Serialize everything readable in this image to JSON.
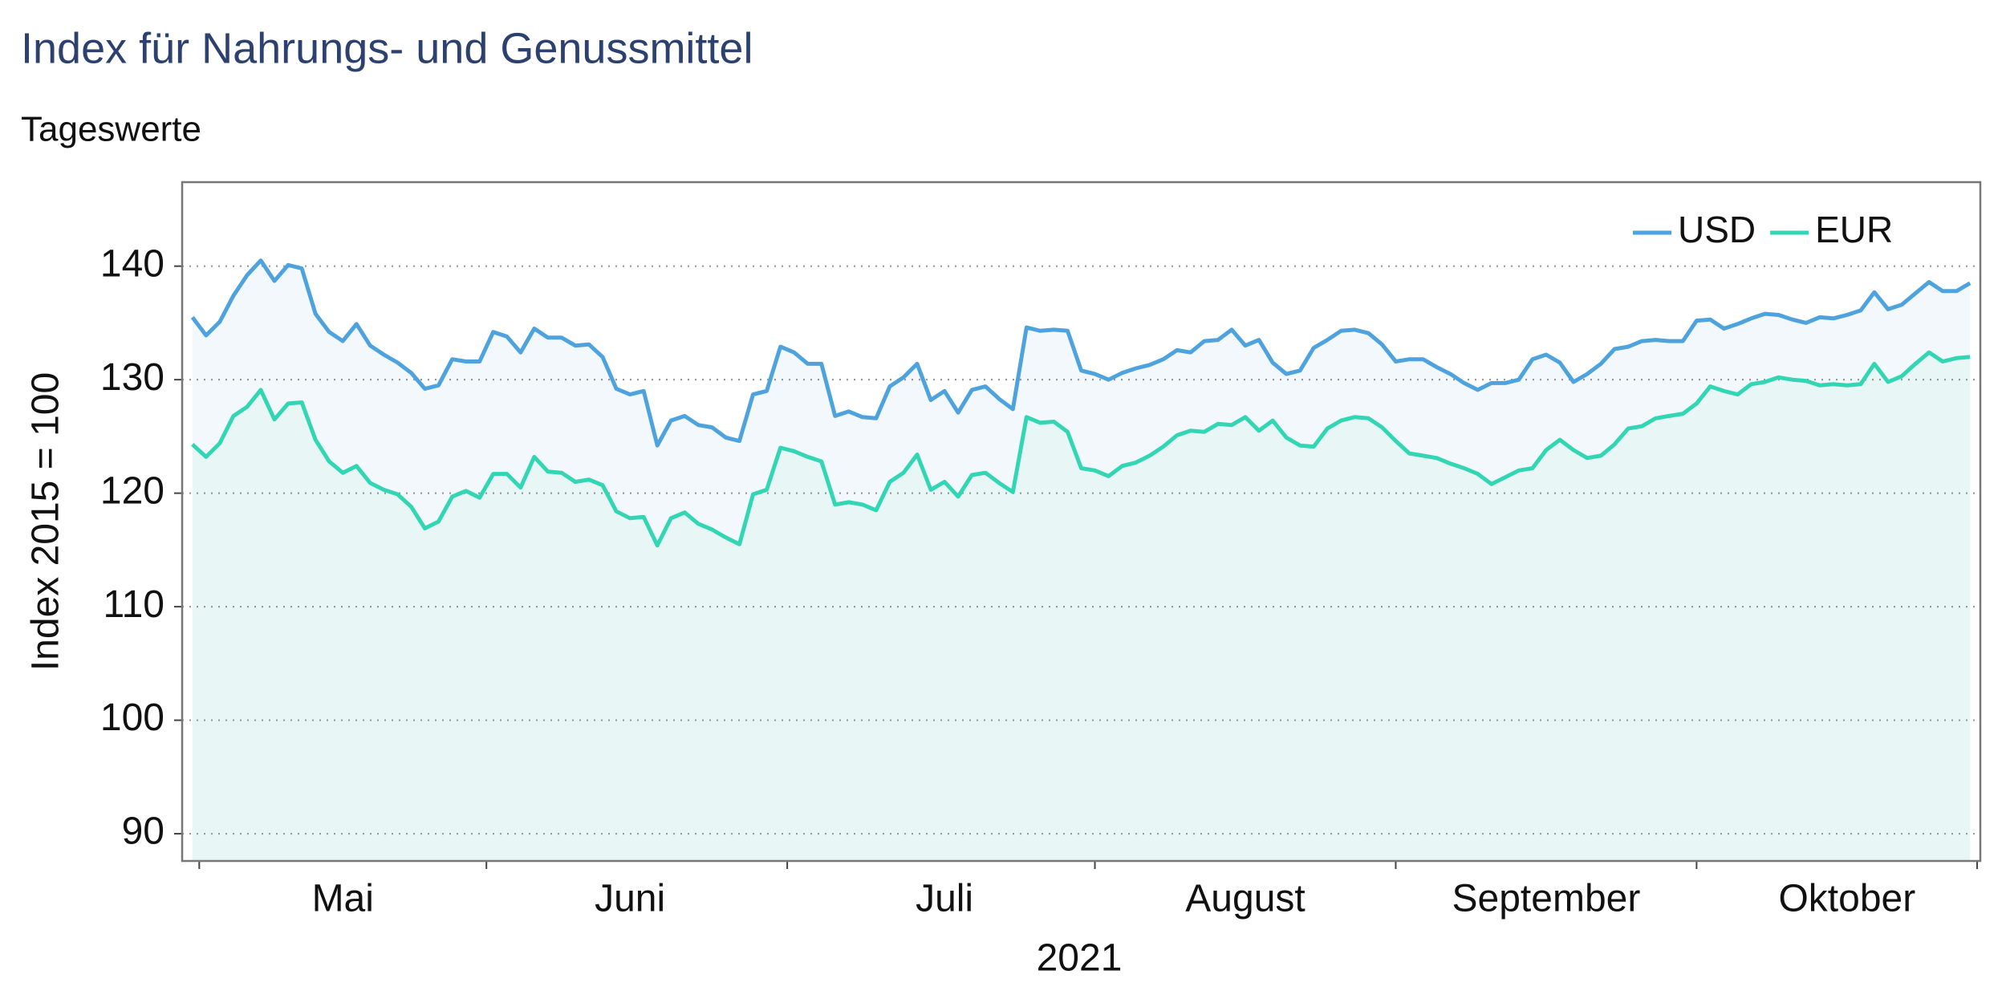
{
  "chart_data": {
    "type": "line",
    "title": "Index für Nahrungs- und Genussmittel",
    "subtitle": "Tageswerte",
    "x_label": "2021",
    "y_label": "Index 2015 = 100",
    "categories": [
      null,
      null,
      null,
      null,
      null,
      null,
      null,
      null,
      null,
      null,
      null,
      "Mai",
      null,
      null,
      null,
      null,
      null,
      null,
      null,
      null,
      null,
      null,
      null,
      null,
      null,
      null,
      null,
      null,
      null,
      null,
      null,
      null,
      "Juni",
      null,
      null,
      null,
      null,
      null,
      null,
      null,
      null,
      null,
      null,
      null,
      null,
      null,
      null,
      null,
      null,
      null,
      null,
      null,
      null,
      null,
      null,
      "Juli",
      null,
      null,
      null,
      null,
      null,
      null,
      null,
      null,
      null,
      null,
      null,
      null,
      null,
      null,
      null,
      null,
      null,
      null,
      null,
      null,
      null,
      "August",
      null,
      null,
      null,
      null,
      null,
      null,
      null,
      null,
      null,
      null,
      null,
      null,
      null,
      null,
      null,
      null,
      null,
      null,
      null,
      null,
      null,
      "September",
      null,
      null,
      null,
      null,
      null,
      null,
      null,
      null,
      null,
      null,
      null,
      null,
      null,
      null,
      null,
      null,
      null,
      null,
      null,
      null,
      null,
      "Oktober",
      null,
      null,
      null,
      null,
      null,
      null,
      null,
      null,
      null
    ],
    "series": [
      {
        "name": "USD",
        "color": "#4ea3de",
        "fill": "#f3f8fc",
        "values": [
          135.5,
          133.9,
          135.1,
          137.4,
          139.2,
          140.5,
          138.7,
          140.1,
          139.8,
          135.8,
          134.2,
          133.4,
          134.9,
          133.0,
          132.2,
          131.5,
          130.6,
          129.2,
          129.5,
          131.8,
          131.6,
          131.6,
          134.2,
          133.8,
          132.4,
          134.5,
          133.7,
          133.7,
          133.0,
          133.1,
          132.0,
          129.2,
          128.7,
          129.0,
          124.2,
          126.4,
          126.8,
          126.0,
          125.8,
          124.9,
          124.6,
          128.7,
          129.0,
          132.9,
          132.4,
          131.4,
          131.4,
          126.8,
          127.2,
          126.7,
          126.6,
          129.4,
          130.2,
          131.4,
          128.2,
          129.0,
          127.1,
          129.1,
          129.4,
          128.3,
          127.4,
          134.6,
          134.3,
          134.4,
          134.3,
          130.8,
          130.5,
          130.0,
          130.6,
          131.0,
          131.3,
          131.8,
          132.6,
          132.4,
          133.4,
          133.5,
          134.4,
          133.0,
          133.5,
          131.5,
          130.5,
          130.8,
          132.8,
          133.5,
          134.3,
          134.4,
          134.1,
          133.1,
          131.6,
          131.8,
          131.8,
          131.1,
          130.5,
          129.7,
          129.1,
          129.7,
          129.7,
          130.0,
          131.8,
          132.2,
          131.5,
          129.8,
          130.5,
          131.4,
          132.7,
          132.9,
          133.4,
          133.5,
          133.4,
          133.4,
          135.2,
          135.3,
          134.5,
          134.9,
          135.4,
          135.8,
          135.7,
          135.3,
          135.0,
          135.5,
          135.4,
          135.7,
          136.1,
          137.7,
          136.2,
          136.6,
          137.6,
          138.6,
          137.8,
          137.8,
          138.5
        ]
      },
      {
        "name": "EUR",
        "color": "#33d6b4",
        "fill": "#e8f6f6",
        "values": [
          124.3,
          123.2,
          124.4,
          126.8,
          127.6,
          129.1,
          126.5,
          127.9,
          128.0,
          124.7,
          122.8,
          121.8,
          122.4,
          120.9,
          120.3,
          119.9,
          118.8,
          116.9,
          117.5,
          119.7,
          120.2,
          119.6,
          121.7,
          121.7,
          120.5,
          123.2,
          121.9,
          121.8,
          121.0,
          121.2,
          120.7,
          118.4,
          117.8,
          117.9,
          115.4,
          117.8,
          118.3,
          117.3,
          116.8,
          116.1,
          115.5,
          119.9,
          120.3,
          124.0,
          123.7,
          123.2,
          122.8,
          119.0,
          119.2,
          119.0,
          118.5,
          121.0,
          121.8,
          123.4,
          120.3,
          121.0,
          119.7,
          121.6,
          121.8,
          120.9,
          120.1,
          126.7,
          126.2,
          126.3,
          125.4,
          122.2,
          122.0,
          121.5,
          122.4,
          122.7,
          123.3,
          124.1,
          125.1,
          125.5,
          125.4,
          126.1,
          126.0,
          126.7,
          125.5,
          126.4,
          124.9,
          124.2,
          124.1,
          125.7,
          126.4,
          126.7,
          126.6,
          125.8,
          124.6,
          123.5,
          123.3,
          123.1,
          122.6,
          122.2,
          121.7,
          120.8,
          121.4,
          122.0,
          122.2,
          123.8,
          124.7,
          123.8,
          123.1,
          123.3,
          124.3,
          125.7,
          125.9,
          126.6,
          126.8,
          127.0,
          127.9,
          129.4,
          129.0,
          128.7,
          129.6,
          129.8,
          130.2,
          130.0,
          129.9,
          129.5,
          129.6,
          129.5,
          129.6,
          131.4,
          129.8,
          130.3,
          131.4,
          132.4,
          131.6,
          131.9,
          132.0
        ]
      }
    ],
    "ylim": [
      87.6,
      147.4
    ],
    "yticks": [
      90,
      100,
      110,
      120,
      130,
      140
    ],
    "grid": true,
    "legend": "upper right"
  }
}
